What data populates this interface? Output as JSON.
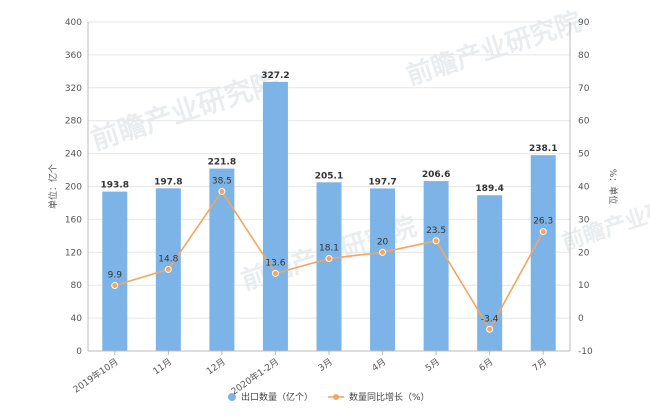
{
  "chart_data": {
    "type": "bar",
    "categories": [
      "2019年10月",
      "11月",
      "12月",
      "2020年1-2月",
      "3月",
      "4月",
      "5月",
      "6月",
      "7月"
    ],
    "series": [
      {
        "name": "出口数量（亿个）",
        "type": "bar",
        "axis": "left",
        "color": "#7db4e8",
        "values": [
          193.8,
          197.8,
          221.8,
          327.2,
          205.1,
          197.7,
          206.6,
          189.4,
          238.1
        ],
        "labels": [
          "193.8",
          "197.8",
          "221.8",
          "327.2",
          "205.1",
          "197.7",
          "206.6",
          "189.4",
          "238.1"
        ]
      },
      {
        "name": "数量同比增长（%）",
        "type": "line",
        "axis": "right",
        "color": "#f5a55f",
        "values": [
          9.9,
          14.8,
          38.5,
          13.6,
          18.1,
          20,
          23.5,
          -3.4,
          26.3
        ],
        "labels": [
          "9.9",
          "14.8",
          "38.5",
          "13.6",
          "18.1",
          "20",
          "23.5",
          "-3.4",
          "26.3"
        ]
      }
    ],
    "ylabel": "单位：亿个",
    "y2label": "%：单位",
    "ylim": [
      0,
      400
    ],
    "y2lim": [
      -10,
      90
    ],
    "yticks": [
      "0",
      "40",
      "80",
      "120",
      "160",
      "200",
      "240",
      "280",
      "320",
      "360",
      "400"
    ],
    "y2ticks": [
      "-10",
      "0",
      "10",
      "20",
      "30",
      "40",
      "50",
      "60",
      "70",
      "80",
      "90"
    ],
    "grid": true,
    "legend_position": "bottom-center"
  },
  "watermark": {
    "text": "前瞻产业研究院"
  }
}
